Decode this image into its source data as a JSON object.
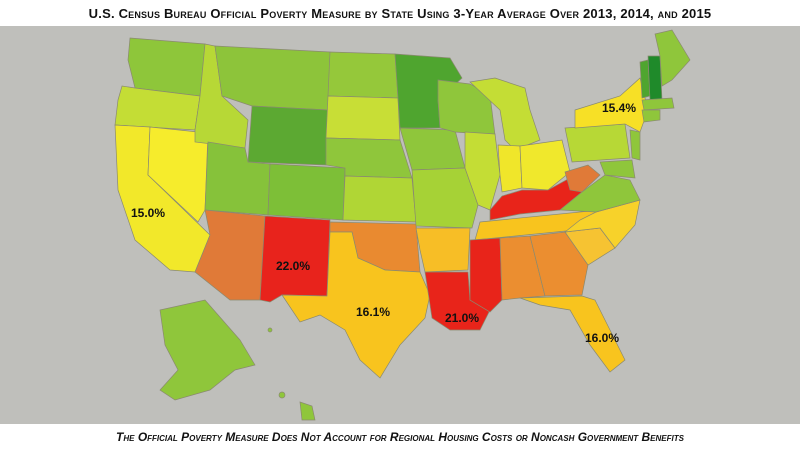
{
  "title": "U.S. Census Bureau Official Poverty Measure by State Using 3-Year Average Over 2013, 2014, and 2015",
  "caption": "The Official Poverty Measure Does Not Account for Regional Housing Costs or Noncash Government Benefits",
  "colors": {
    "background": "#bfbfbb",
    "lowest": "#1f8f2a",
    "low": "#6cbf2e",
    "mid_low": "#b3d634",
    "mid": "#f0e62a",
    "mid_high": "#f7c21e",
    "high": "#ea8a2e",
    "highest": "#e8241a"
  },
  "labels": {
    "california": "15.0%",
    "new_mexico": "22.0%",
    "texas": "16.1%",
    "louisiana": "21.0%",
    "florida": "16.0%",
    "new_york": "15.4%"
  }
}
